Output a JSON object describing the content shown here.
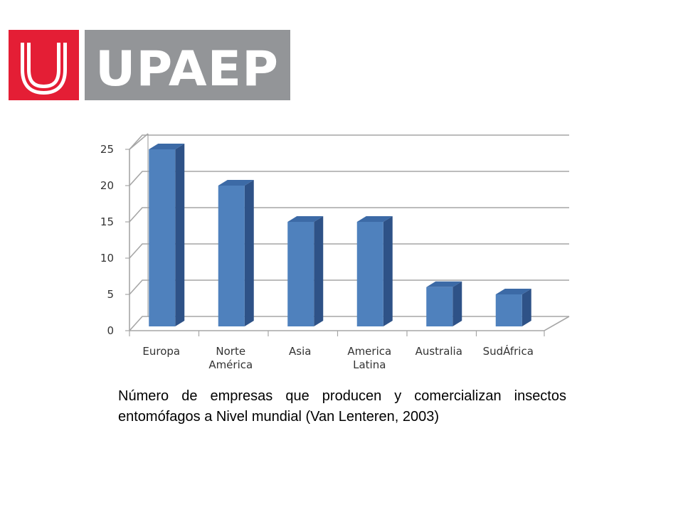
{
  "logo": {
    "mark": "U",
    "wordmark": "UPAEP",
    "colors": {
      "mark_bg": "#e41e35",
      "word_bg": "#939598",
      "text": "#ffffff"
    }
  },
  "chart_data": {
    "type": "bar",
    "style": "3d-column",
    "categories": [
      [
        "Europa"
      ],
      [
        "Norte",
        "América"
      ],
      [
        "Asia"
      ],
      [
        "America",
        "Latina"
      ],
      [
        "Australia"
      ],
      [
        "SudÁfrica"
      ]
    ],
    "values": [
      25,
      20,
      15,
      15,
      6,
      5
    ],
    "yticks": [
      0,
      5,
      10,
      15,
      20,
      25
    ],
    "ylim": [
      0,
      25
    ],
    "grid": true,
    "legend": "none",
    "colors": {
      "bar_front": "#4f81bd",
      "bar_side": "#2e5287",
      "bar_top": "#3c6aa6",
      "grid": "#a6a6a6"
    }
  },
  "caption": "Número de empresas que producen y comercializan insectos entomófagos a  Nivel mundial (Van Lenteren, 2003)"
}
